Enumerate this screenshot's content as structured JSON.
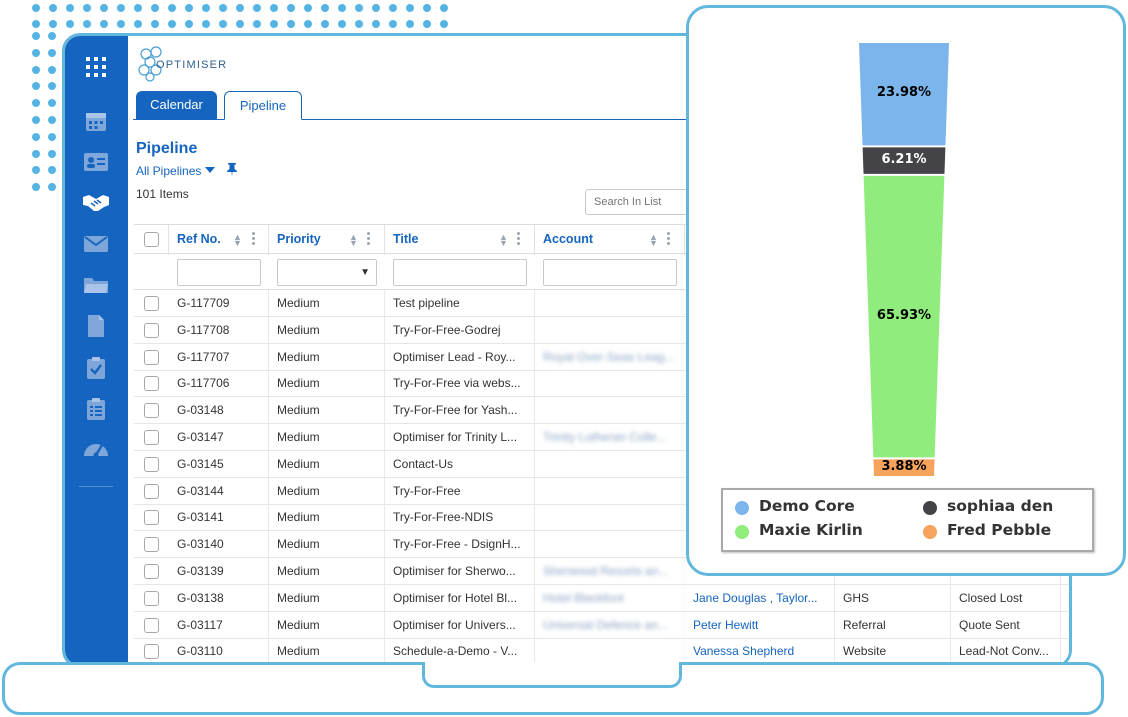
{
  "app": {
    "logo_text": "OPTIMISER"
  },
  "tabs": [
    {
      "label": "Calendar",
      "active": true
    },
    {
      "label": "Pipeline",
      "active": false
    }
  ],
  "page": {
    "title": "Pipeline",
    "filter_label": "All Pipelines",
    "items_count": "101 Items",
    "search_placeholder": "Search In List"
  },
  "sidebar": {
    "icons": [
      "apps-grid-icon",
      "calendar-icon",
      "contact-card-icon",
      "handshake-icon",
      "mail-icon",
      "folder-icon",
      "document-icon",
      "clipboard-check-icon",
      "clipboard-list-icon",
      "dashboard-gauge-icon"
    ],
    "active": "handshake-icon"
  },
  "table": {
    "columns": [
      "Ref No.",
      "Priority",
      "Title",
      "Account"
    ],
    "rows": [
      {
        "ref": "G-117709",
        "priority": "Medium",
        "title": "Test pipeline",
        "account": "",
        "contact": "",
        "source": "",
        "stage": ""
      },
      {
        "ref": "G-117708",
        "priority": "Medium",
        "title": "Try-For-Free-Godrej",
        "account": "",
        "contact": "",
        "source": "",
        "stage": ""
      },
      {
        "ref": "G-117707",
        "priority": "Medium",
        "title": "Optimiser Lead - Roy...",
        "account": "Royal Over-Seas Leag...",
        "contact": "",
        "source": "",
        "stage": ""
      },
      {
        "ref": "G-117706",
        "priority": "Medium",
        "title": "Try-For-Free via webs...",
        "account": "",
        "contact": "",
        "source": "",
        "stage": ""
      },
      {
        "ref": "G-03148",
        "priority": "Medium",
        "title": "Try-For-Free for Yash...",
        "account": "",
        "contact": "",
        "source": "",
        "stage": ""
      },
      {
        "ref": "G-03147",
        "priority": "Medium",
        "title": "Optimiser for Trinity L...",
        "account": "Trinity Lutheran Colle...",
        "contact": "",
        "source": "",
        "stage": ""
      },
      {
        "ref": "G-03145",
        "priority": "Medium",
        "title": "Contact-Us",
        "account": "",
        "contact": "",
        "source": "",
        "stage": ""
      },
      {
        "ref": "G-03144",
        "priority": "Medium",
        "title": "Try-For-Free",
        "account": "",
        "contact": "",
        "source": "",
        "stage": ""
      },
      {
        "ref": "G-03141",
        "priority": "Medium",
        "title": "Try-For-Free-NDIS",
        "account": "",
        "contact": "",
        "source": "",
        "stage": ""
      },
      {
        "ref": "G-03140",
        "priority": "Medium",
        "title": "Try-For-Free - DsignH...",
        "account": "",
        "contact": "",
        "source": "",
        "stage": ""
      },
      {
        "ref": "G-03139",
        "priority": "Medium",
        "title": "Optimiser for Sherwo...",
        "account": "Sherwood Resorts an...",
        "contact": "",
        "source": "",
        "stage": ""
      },
      {
        "ref": "G-03138",
        "priority": "Medium",
        "title": "Optimiser for Hotel Bl...",
        "account": "Hotel Blackfoot",
        "contact": "Jane Douglas , Taylor...",
        "source": "GHS",
        "stage": "Closed Lost"
      },
      {
        "ref": "G-03117",
        "priority": "Medium",
        "title": "Optimiser for Univers...",
        "account": "Universal Defence an...",
        "contact": "Peter Hewitt",
        "source": "Referral",
        "stage": "Quote Sent"
      },
      {
        "ref": "G-03110",
        "priority": "Medium",
        "title": "Schedule-a-Demo - V...",
        "account": "",
        "contact": "Vanessa Shepherd",
        "source": "Website",
        "stage": "Lead-Not Conv..."
      }
    ]
  },
  "chart_data": {
    "type": "funnel",
    "series": [
      {
        "name": "Demo Core",
        "value": 23.98,
        "label": "23.98%",
        "color": "#7cb5ec"
      },
      {
        "name": "sophiaa den",
        "value": 6.21,
        "label": "6.21%",
        "color": "#434348"
      },
      {
        "name": "Maxie Kirlin",
        "value": 65.93,
        "label": "65.93%",
        "color": "#90ed7d"
      },
      {
        "name": "Fred Pebble",
        "value": 3.88,
        "label": "3.88%",
        "color": "#f7a35c"
      }
    ],
    "legend_position": "bottom"
  },
  "colors": {
    "brand_blue": "#1565c0",
    "accent_cyan": "#62b8dc"
  }
}
